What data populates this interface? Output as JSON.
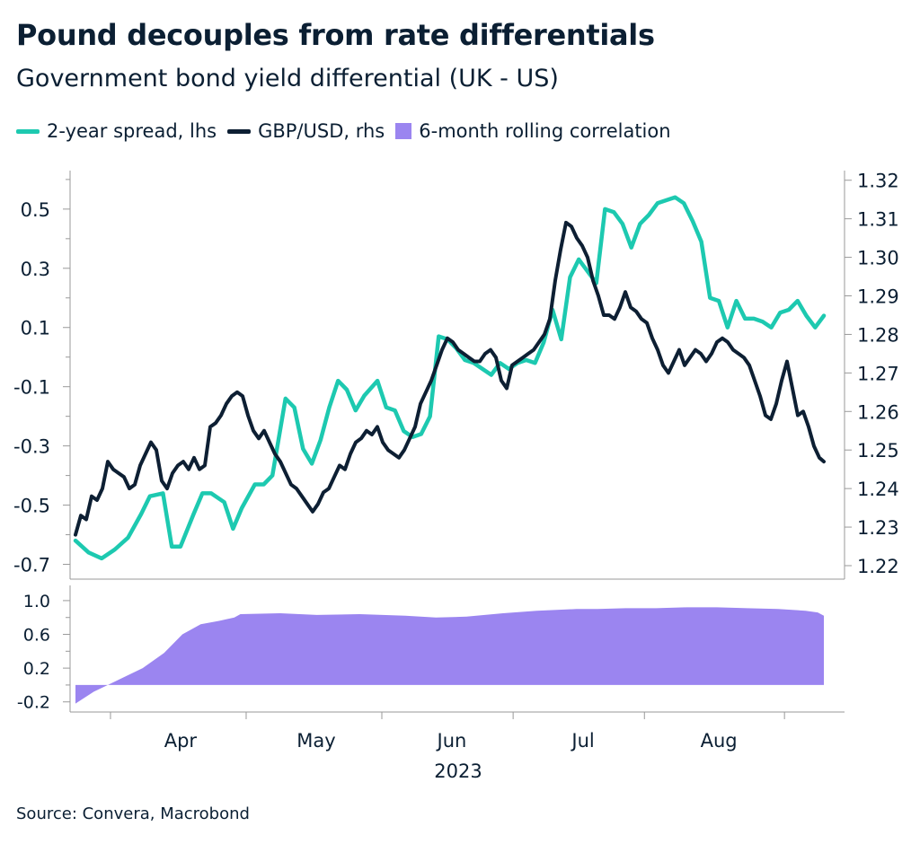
{
  "title": "Pound decouples from rate differentials",
  "subtitle": "Government bond yield differential (UK - US)",
  "source": "Source: Convera, Macrobond",
  "colors": {
    "spread": "#1dc9b0",
    "gbpusd": "#0d1f33",
    "correlation": "#9b85f0",
    "axis": "#999999"
  },
  "legend": [
    {
      "label": "2-year spread, lhs",
      "kind": "line",
      "color": "#1dc9b0"
    },
    {
      "label": "GBP/USD, rhs",
      "kind": "line",
      "color": "#0d1f33"
    },
    {
      "label": "6-month rolling correlation",
      "kind": "box",
      "color": "#9b85f0"
    }
  ],
  "chart_data": [
    {
      "type": "line",
      "title": "",
      "xlabel": "2023",
      "x_tick_labels": [
        "Apr",
        "May",
        "Jun",
        "Jul",
        "Aug"
      ],
      "x_year_label": "2023",
      "x_range": [
        "2023-03-14",
        "2023-09-01"
      ],
      "left_axis": {
        "ylim": [
          -0.75,
          0.63
        ],
        "ticks": [
          "0.5",
          "0.3",
          "0.1",
          "-0.1",
          "-0.3",
          "-0.5",
          "-0.7"
        ]
      },
      "right_axis": {
        "ylim": [
          1.2165,
          1.3225
        ],
        "ticks": [
          "1.32",
          "1.31",
          "1.30",
          "1.29",
          "1.28",
          "1.27",
          "1.26",
          "1.25",
          "1.24",
          "1.23",
          "1.22"
        ]
      },
      "series": [
        {
          "name": "2-year spread, lhs",
          "axis": "left",
          "points": [
            [
              "2023-03-14",
              -0.62
            ],
            [
              "2023-03-17",
              -0.66
            ],
            [
              "2023-03-20",
              -0.68
            ],
            [
              "2023-03-23",
              -0.65
            ],
            [
              "2023-03-26",
              -0.61
            ],
            [
              "2023-03-29",
              -0.53
            ],
            [
              "2023-03-31",
              -0.47
            ],
            [
              "2023-04-03",
              -0.46
            ],
            [
              "2023-04-05",
              -0.64
            ],
            [
              "2023-04-07",
              -0.64
            ],
            [
              "2023-04-10",
              -0.53
            ],
            [
              "2023-04-12",
              -0.46
            ],
            [
              "2023-04-14",
              -0.46
            ],
            [
              "2023-04-17",
              -0.49
            ],
            [
              "2023-04-19",
              -0.58
            ],
            [
              "2023-04-21",
              -0.51
            ],
            [
              "2023-04-24",
              -0.43
            ],
            [
              "2023-04-26",
              -0.43
            ],
            [
              "2023-04-28",
              -0.4
            ],
            [
              "2023-05-01",
              -0.14
            ],
            [
              "2023-05-03",
              -0.17
            ],
            [
              "2023-05-05",
              -0.31
            ],
            [
              "2023-05-07",
              -0.36
            ],
            [
              "2023-05-09",
              -0.28
            ],
            [
              "2023-05-11",
              -0.17
            ],
            [
              "2023-05-13",
              -0.08
            ],
            [
              "2023-05-15",
              -0.11
            ],
            [
              "2023-05-17",
              -0.18
            ],
            [
              "2023-05-19",
              -0.13
            ],
            [
              "2023-05-22",
              -0.08
            ],
            [
              "2023-05-24",
              -0.17
            ],
            [
              "2023-05-26",
              -0.18
            ],
            [
              "2023-05-28",
              -0.25
            ],
            [
              "2023-05-30",
              -0.27
            ],
            [
              "2023-06-01",
              -0.26
            ],
            [
              "2023-06-03",
              -0.2
            ],
            [
              "2023-06-05",
              0.07
            ],
            [
              "2023-06-07",
              0.06
            ],
            [
              "2023-06-09",
              0.03
            ],
            [
              "2023-06-11",
              -0.01
            ],
            [
              "2023-06-13",
              -0.02
            ],
            [
              "2023-06-15",
              -0.04
            ],
            [
              "2023-06-17",
              -0.06
            ],
            [
              "2023-06-19",
              -0.02
            ],
            [
              "2023-06-21",
              -0.04
            ],
            [
              "2023-06-23",
              -0.02
            ],
            [
              "2023-06-25",
              -0.01
            ],
            [
              "2023-06-27",
              -0.02
            ],
            [
              "2023-06-29",
              0.05
            ],
            [
              "2023-07-01",
              0.16
            ],
            [
              "2023-07-03",
              0.06
            ],
            [
              "2023-07-05",
              0.27
            ],
            [
              "2023-07-07",
              0.33
            ],
            [
              "2023-07-09",
              0.29
            ],
            [
              "2023-07-11",
              0.25
            ],
            [
              "2023-07-13",
              0.5
            ],
            [
              "2023-07-15",
              0.49
            ],
            [
              "2023-07-17",
              0.45
            ],
            [
              "2023-07-19",
              0.37
            ],
            [
              "2023-07-21",
              0.45
            ],
            [
              "2023-07-23",
              0.48
            ],
            [
              "2023-07-25",
              0.52
            ],
            [
              "2023-07-27",
              0.53
            ],
            [
              "2023-07-29",
              0.54
            ],
            [
              "2023-07-31",
              0.52
            ],
            [
              "2023-08-02",
              0.46
            ],
            [
              "2023-08-04",
              0.39
            ],
            [
              "2023-08-06",
              0.2
            ],
            [
              "2023-08-08",
              0.19
            ],
            [
              "2023-08-10",
              0.1
            ],
            [
              "2023-08-12",
              0.19
            ],
            [
              "2023-08-14",
              0.13
            ],
            [
              "2023-08-16",
              0.13
            ],
            [
              "2023-08-18",
              0.12
            ],
            [
              "2023-08-20",
              0.1
            ],
            [
              "2023-08-22",
              0.15
            ],
            [
              "2023-08-24",
              0.16
            ],
            [
              "2023-08-26",
              0.19
            ],
            [
              "2023-08-28",
              0.14
            ],
            [
              "2023-08-30",
              0.1
            ],
            [
              "2023-09-01",
              0.14
            ]
          ]
        }
      ]
    }
  ],
  "axis_labels": {
    "top_left_ticks": [
      "0.5",
      "0.3",
      "0.1",
      "-0.1",
      "-0.3",
      "-0.5",
      "-0.7"
    ],
    "top_right_ticks": [
      "1.32",
      "1.31",
      "1.30",
      "1.29",
      "1.28",
      "1.27",
      "1.26",
      "1.25",
      "1.24",
      "1.23",
      "1.22"
    ],
    "bottom_ticks": [
      "1.0",
      "0.6",
      "0.2",
      "-0.2"
    ],
    "months": [
      "Apr",
      "May",
      "Jun",
      "Jul",
      "Aug"
    ],
    "year": "2023"
  }
}
